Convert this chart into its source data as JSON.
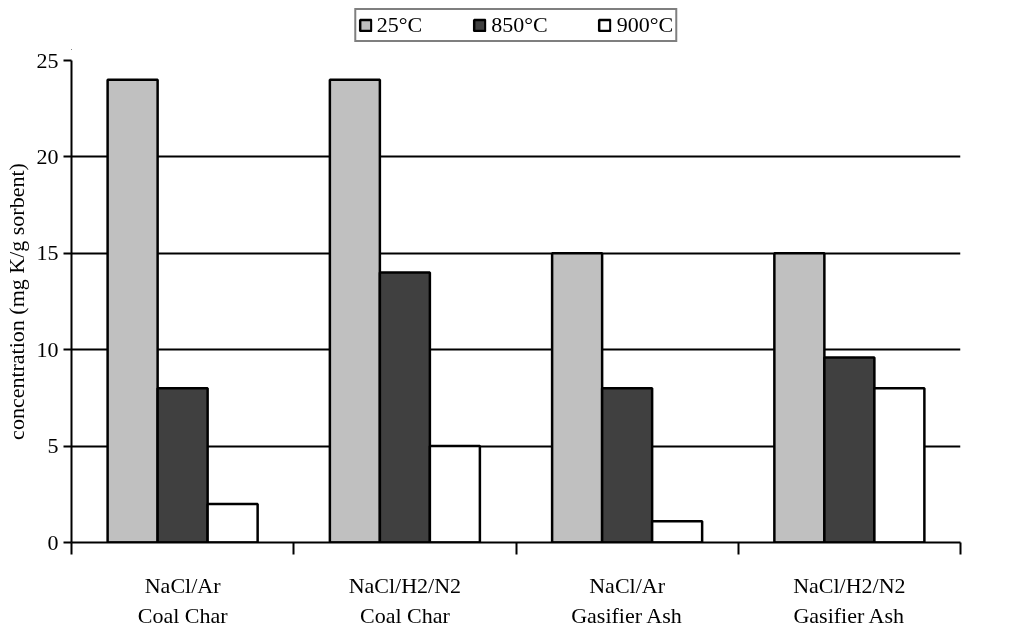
{
  "chart_data": {
    "type": "bar",
    "ylabel": "concentration (mg K/g sorbent)",
    "categories": [
      "NaCl/Ar\nCoal Char",
      "NaCl/H2/N2\nCoal Char",
      "NaCl/Ar\nGasifier Ash",
      "NaCl/H2/N2\nGasifier Ash"
    ],
    "series": [
      {
        "name": "25°C",
        "color": "#c0c0c0",
        "values": [
          24,
          24,
          15,
          15
        ]
      },
      {
        "name": "850°C",
        "color": "#404040",
        "values": [
          8,
          14,
          8,
          9.6
        ]
      },
      {
        "name": "900°C",
        "color": "#ffffff",
        "values": [
          2,
          5,
          1.1,
          8
        ]
      }
    ],
    "ylim": [
      0,
      25
    ],
    "yticks": [
      0,
      5,
      10,
      15,
      20,
      25
    ],
    "grid": "y",
    "legend": "top"
  }
}
